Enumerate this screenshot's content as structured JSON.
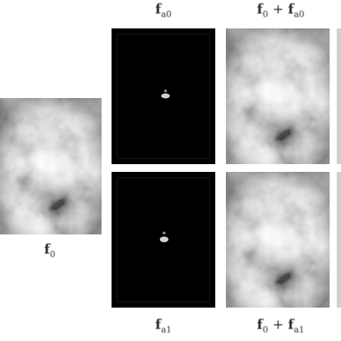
{
  "labels": {
    "base": {
      "sym": "f",
      "sub": "0"
    },
    "top_perturb": {
      "sym": "f",
      "sub": "a0"
    },
    "bottom_perturb": {
      "sym": "f",
      "sub": "a1"
    },
    "top_sum": {
      "left": "f",
      "left_sub": "0",
      "op": " + ",
      "right": "f",
      "right_sub": "a0"
    },
    "bottom_sum": {
      "left": "f",
      "left_sub": "0",
      "op": " + ",
      "right": "f",
      "right_sub": "a1"
    }
  },
  "colors": {
    "background": "#ffffff",
    "perturbation_field": "#000000",
    "speck": "#e8e8e8"
  }
}
